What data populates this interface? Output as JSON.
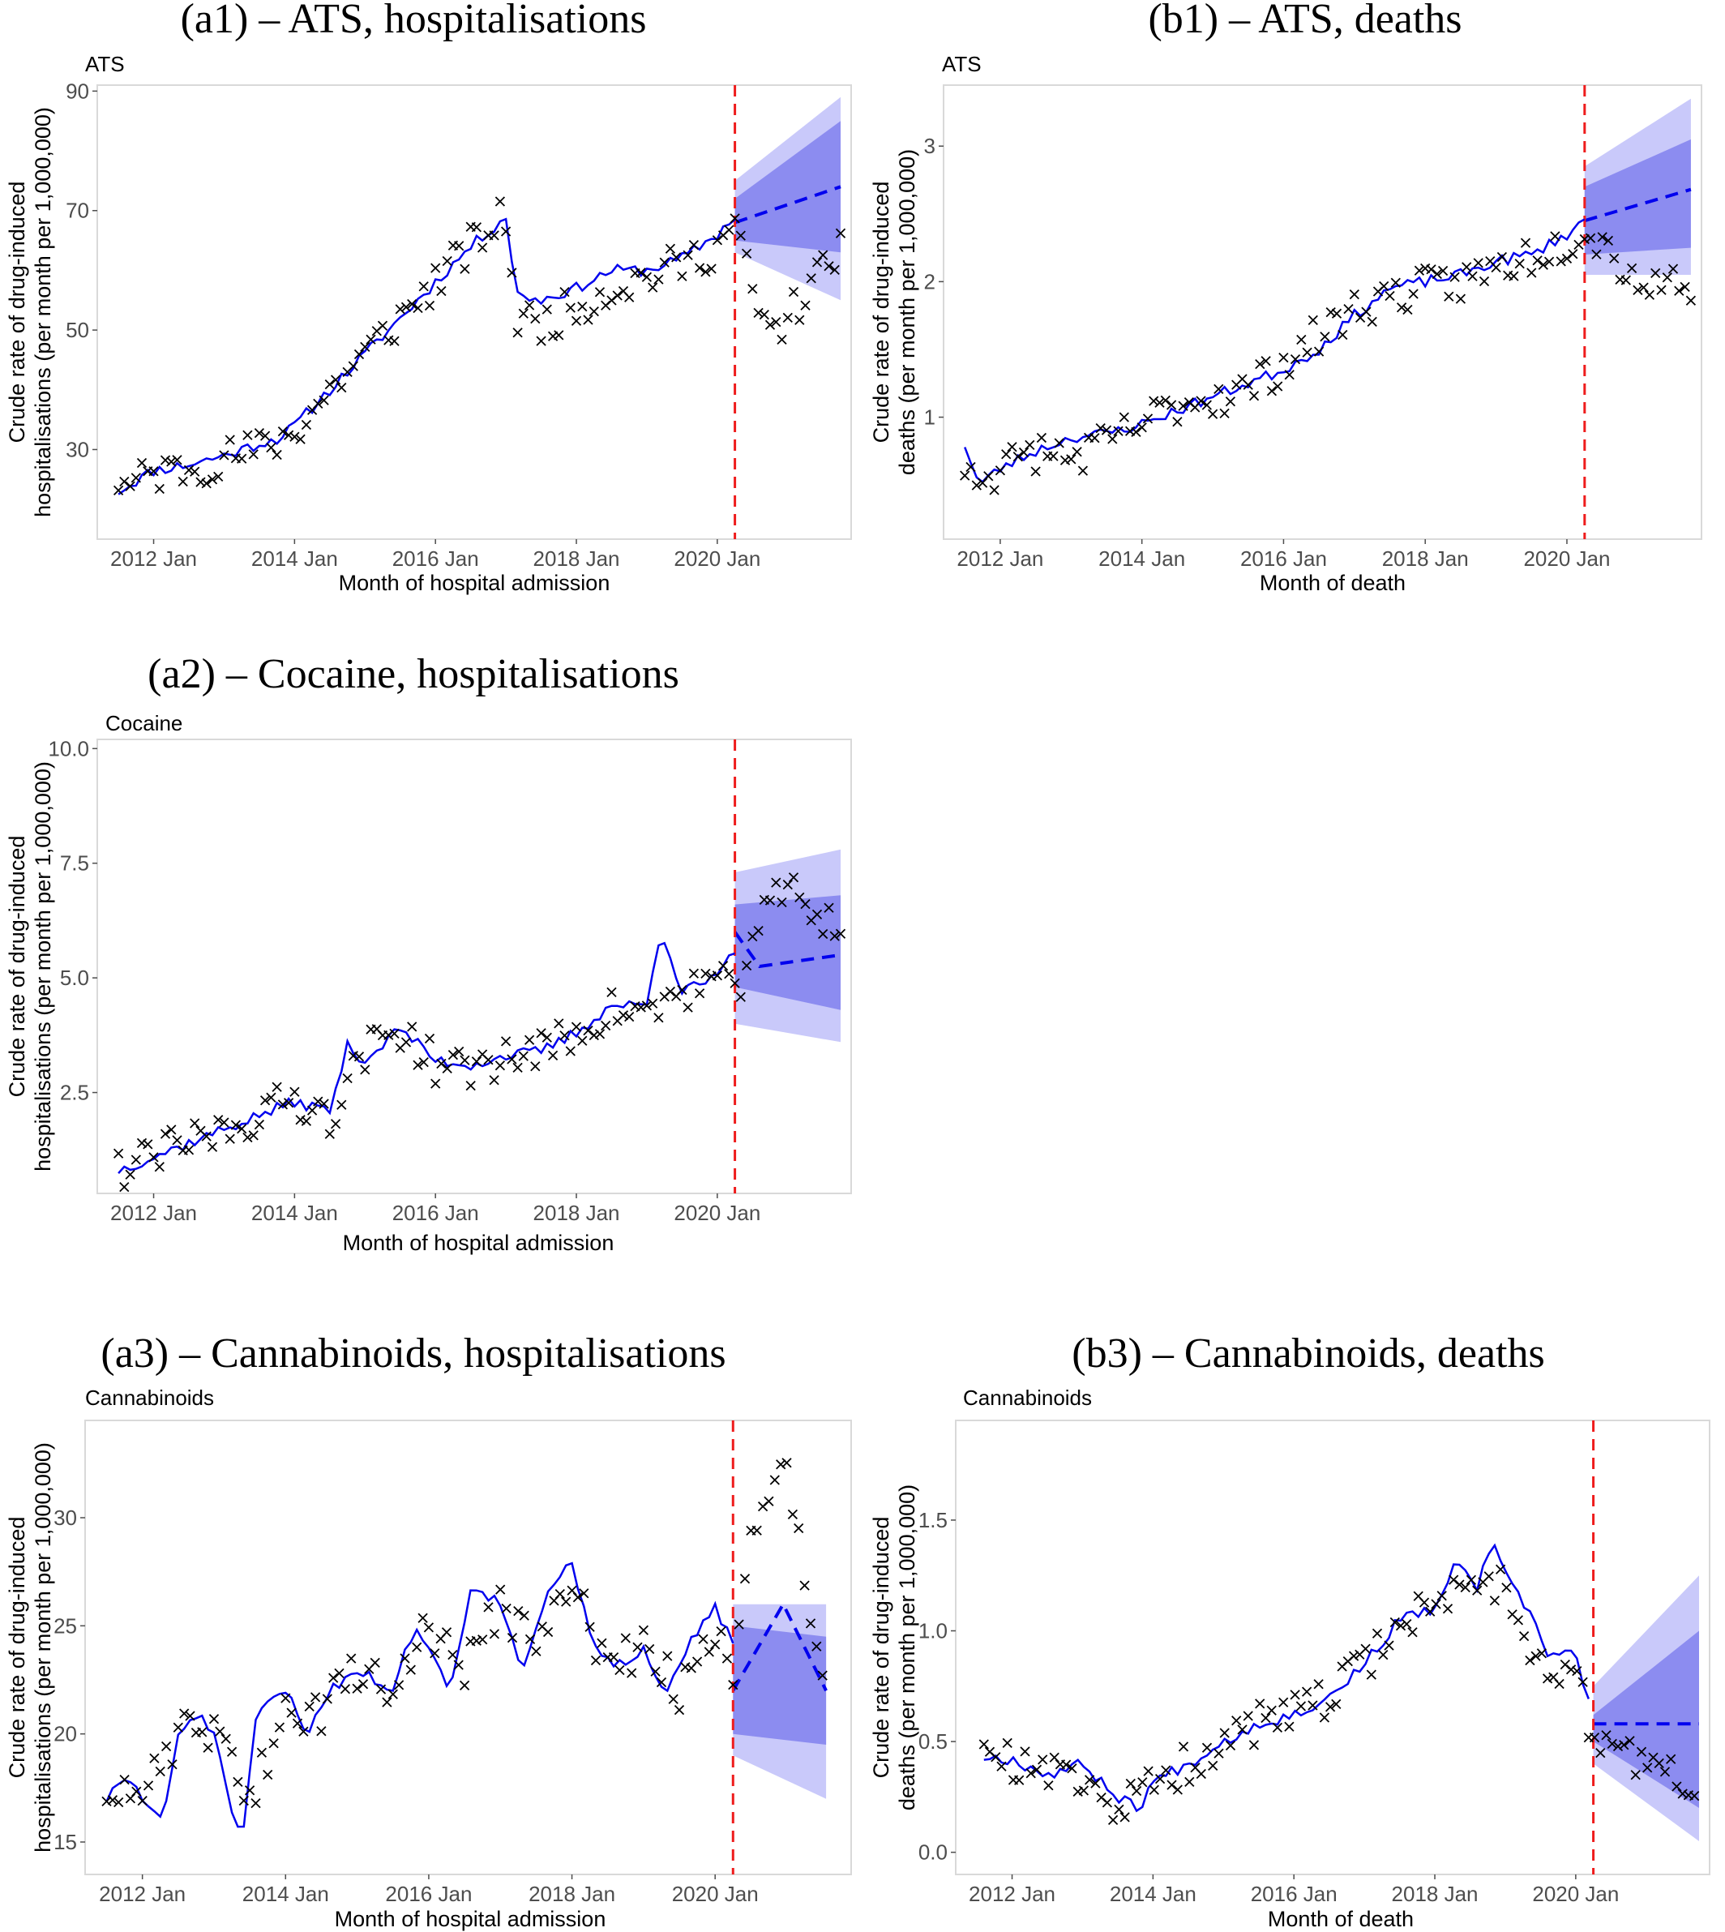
{
  "chart_data": [
    {
      "type": "line",
      "panel_title": "(a1) – ATS, hospitalisations",
      "subtitle": "ATS",
      "xlabel": "Month of hospital admission",
      "ylabel": [
        "Crude rate of drug-induced",
        "hospitalisations (per month per 1,000,000)"
      ],
      "xlim": [
        2011.2,
        2021.9
      ],
      "ylim": [
        15,
        91
      ],
      "xticks": [
        2012,
        2014,
        2016,
        2018,
        2020
      ],
      "xtick_labels": [
        "2012 Jan",
        "2014 Jan",
        "2016 Jan",
        "2018 Jan",
        "2020 Jan"
      ],
      "yticks": [
        30,
        50,
        70,
        90
      ],
      "intervention": 2020.25,
      "fit_knots": [
        [
          2011.5,
          23
        ],
        [
          2012,
          26.5
        ],
        [
          2012.5,
          27.5
        ],
        [
          2013,
          29
        ],
        [
          2013.5,
          31
        ],
        [
          2013.8,
          32
        ],
        [
          2014,
          34
        ],
        [
          2014.5,
          40
        ],
        [
          2015,
          46
        ],
        [
          2015.5,
          52
        ],
        [
          2016,
          58
        ],
        [
          2016.5,
          64
        ],
        [
          2017,
          69
        ],
        [
          2017.15,
          56
        ],
        [
          2017.5,
          55
        ],
        [
          2018,
          57
        ],
        [
          2018.5,
          60
        ],
        [
          2019,
          60
        ],
        [
          2019.5,
          62
        ],
        [
          2020,
          66
        ],
        [
          2020.25,
          69
        ]
      ],
      "forecast": {
        "start": 2020.25,
        "end": 2021.75,
        "y_start": 68,
        "y_end": 74,
        "inner_lo": [
          65,
          63
        ],
        "inner_hi": [
          72,
          85
        ],
        "outer_lo": [
          63,
          55
        ],
        "outer_hi": [
          75,
          89
        ]
      },
      "observed_knots": [
        [
          2011.5,
          23
        ],
        [
          2012,
          26
        ],
        [
          2012.5,
          27
        ],
        [
          2013,
          28.5
        ],
        [
          2013.5,
          30
        ],
        [
          2014,
          33
        ],
        [
          2014.5,
          40
        ],
        [
          2015,
          46
        ],
        [
          2015.5,
          52
        ],
        [
          2016,
          58
        ],
        [
          2016.5,
          64
        ],
        [
          2017,
          69
        ],
        [
          2017.15,
          52
        ],
        [
          2017.5,
          51
        ],
        [
          2018,
          54
        ],
        [
          2018.5,
          57
        ],
        [
          2019,
          59
        ],
        [
          2019.5,
          61
        ],
        [
          2020,
          64
        ],
        [
          2020.25,
          68
        ],
        [
          2020.5,
          56
        ],
        [
          2020.75,
          49
        ],
        [
          2021,
          52
        ],
        [
          2021.5,
          60
        ],
        [
          2021.75,
          65
        ]
      ],
      "seed": 11
    },
    {
      "type": "line",
      "panel_title": "(b1) – ATS, deaths",
      "subtitle": "ATS",
      "xlabel": "Month of death",
      "ylabel": [
        "Crude rate of drug-induced",
        "deaths (per month per 1,000,000)"
      ],
      "xlim": [
        2011.2,
        2021.9
      ],
      "ylim": [
        0.1,
        3.45
      ],
      "xticks": [
        2012,
        2014,
        2016,
        2018,
        2020
      ],
      "xtick_labels": [
        "2012 Jan",
        "2014 Jan",
        "2016 Jan",
        "2018 Jan",
        "2020 Jan"
      ],
      "yticks": [
        1,
        2,
        3
      ],
      "intervention": 2020.25,
      "fit_knots": [
        [
          2011.5,
          0.8
        ],
        [
          2011.7,
          0.5
        ],
        [
          2012,
          0.62
        ],
        [
          2012.5,
          0.75
        ],
        [
          2013,
          0.85
        ],
        [
          2013.5,
          0.88
        ],
        [
          2014,
          0.95
        ],
        [
          2014.5,
          1.05
        ],
        [
          2015,
          1.15
        ],
        [
          2015.5,
          1.25
        ],
        [
          2016,
          1.35
        ],
        [
          2016.5,
          1.5
        ],
        [
          2017,
          1.75
        ],
        [
          2017.5,
          1.95
        ],
        [
          2018,
          2.0
        ],
        [
          2018.5,
          2.05
        ],
        [
          2019,
          2.15
        ],
        [
          2019.5,
          2.2
        ],
        [
          2020,
          2.35
        ],
        [
          2020.25,
          2.45
        ]
      ],
      "forecast": {
        "start": 2020.25,
        "end": 2021.75,
        "y_start": 2.45,
        "y_end": 2.68,
        "inner_lo": [
          2.2,
          2.25
        ],
        "inner_hi": [
          2.7,
          3.05
        ],
        "outer_lo": [
          2.05,
          2.05
        ],
        "outer_hi": [
          2.85,
          3.35
        ]
      },
      "observed_knots": [
        [
          2011.5,
          0.6
        ],
        [
          2012,
          0.6
        ],
        [
          2012.5,
          0.75
        ],
        [
          2013,
          0.7
        ],
        [
          2013.5,
          0.8
        ],
        [
          2014,
          0.95
        ],
        [
          2014.5,
          1.1
        ],
        [
          2015,
          1.15
        ],
        [
          2015.5,
          1.2
        ],
        [
          2016,
          1.4
        ],
        [
          2016.5,
          1.6
        ],
        [
          2017,
          1.8
        ],
        [
          2017.5,
          1.9
        ],
        [
          2018,
          1.95
        ],
        [
          2018.5,
          2.0
        ],
        [
          2019,
          2.1
        ],
        [
          2019.5,
          2.2
        ],
        [
          2020,
          2.3
        ],
        [
          2020.25,
          2.4
        ],
        [
          2020.5,
          2.3
        ],
        [
          2021,
          2.0
        ],
        [
          2021.75,
          2.0
        ]
      ],
      "seed": 23
    },
    {
      "type": "line",
      "panel_title": "(a2) – Cocaine, hospitalisations",
      "subtitle": "Cocaine",
      "xlabel": "Month of hospital admission",
      "ylabel": [
        "Crude rate of drug-induced",
        "hospitalisations (per month per 1,000,000)"
      ],
      "xlim": [
        2011.2,
        2021.9
      ],
      "ylim": [
        0.3,
        10.2
      ],
      "xticks": [
        2012,
        2014,
        2016,
        2018,
        2020
      ],
      "xtick_labels": [
        "2012 Jan",
        "2014 Jan",
        "2016 Jan",
        "2018 Jan",
        "2020 Jan"
      ],
      "yticks": [
        2.5,
        5.0,
        7.5,
        10.0
      ],
      "ytick_labels": [
        "2.5",
        "5.0",
        "7.5",
        "10.0"
      ],
      "intervention": 2020.25,
      "fit_knots": [
        [
          2011.5,
          0.8
        ],
        [
          2012,
          1.1
        ],
        [
          2012.5,
          1.4
        ],
        [
          2013,
          1.7
        ],
        [
          2013.5,
          2.0
        ],
        [
          2014,
          2.3
        ],
        [
          2014.5,
          2.1
        ],
        [
          2014.75,
          3.5
        ],
        [
          2015,
          3.2
        ],
        [
          2015.5,
          3.9
        ],
        [
          2016,
          3.2
        ],
        [
          2016.5,
          3.1
        ],
        [
          2017,
          3.3
        ],
        [
          2017.5,
          3.4
        ],
        [
          2018,
          3.8
        ],
        [
          2018.5,
          4.4
        ],
        [
          2019,
          4.4
        ],
        [
          2019.2,
          6.1
        ],
        [
          2019.5,
          4.7
        ],
        [
          2020,
          5.0
        ],
        [
          2020.25,
          5.6
        ]
      ],
      "forecast": {
        "start": 2020.25,
        "end": 2021.75,
        "y_start": 6.0,
        "y_end": 5.5,
        "mid": [
          2020.6,
          5.25
        ],
        "inner_lo": [
          4.8,
          4.3
        ],
        "inner_hi": [
          6.6,
          6.8
        ],
        "outer_lo": [
          4.0,
          3.6
        ],
        "outer_hi": [
          7.3,
          7.8
        ]
      },
      "observed_knots": [
        [
          2011.5,
          0.8
        ],
        [
          2012,
          1.1
        ],
        [
          2012.5,
          1.4
        ],
        [
          2013,
          1.7
        ],
        [
          2013.5,
          2.0
        ],
        [
          2014,
          2.4
        ],
        [
          2014.5,
          2.0
        ],
        [
          2015,
          3.4
        ],
        [
          2015.5,
          3.9
        ],
        [
          2016,
          3.1
        ],
        [
          2016.5,
          3.0
        ],
        [
          2017,
          3.3
        ],
        [
          2017.5,
          3.4
        ],
        [
          2018,
          3.8
        ],
        [
          2018.5,
          4.3
        ],
        [
          2019,
          4.2
        ],
        [
          2019.5,
          4.7
        ],
        [
          2020,
          5.0
        ],
        [
          2020.25,
          4.5
        ],
        [
          2020.5,
          6.0
        ],
        [
          2021,
          7.0
        ],
        [
          2021.75,
          6.0
        ]
      ],
      "seed": 37
    },
    {
      "type": "line",
      "panel_title": "(a3) – Cannabinoids, hospitalisations",
      "subtitle": "Cannabinoids",
      "xlabel": "Month of hospital admission",
      "ylabel": [
        "Crude rate of drug-induced",
        "hospitalisations (per month per 1,000,000)"
      ],
      "xlim": [
        2011.2,
        2021.9
      ],
      "ylim": [
        13.5,
        34.5
      ],
      "xticks": [
        2012,
        2014,
        2016,
        2018,
        2020
      ],
      "xtick_labels": [
        "2012 Jan",
        "2014 Jan",
        "2016 Jan",
        "2018 Jan",
        "2020 Jan"
      ],
      "yticks": [
        15,
        20,
        25,
        30
      ],
      "intervention": 2020.25,
      "fit_knots": [
        [
          2011.5,
          17
        ],
        [
          2011.8,
          18
        ],
        [
          2012,
          17
        ],
        [
          2012.3,
          16
        ],
        [
          2012.5,
          20
        ],
        [
          2012.8,
          21
        ],
        [
          2013,
          20
        ],
        [
          2013.2,
          17
        ],
        [
          2013.4,
          15
        ],
        [
          2013.6,
          21
        ],
        [
          2014,
          22
        ],
        [
          2014.3,
          20
        ],
        [
          2014.6,
          22
        ],
        [
          2015,
          23
        ],
        [
          2015.5,
          22
        ],
        [
          2015.8,
          25
        ],
        [
          2016,
          24
        ],
        [
          2016.3,
          22
        ],
        [
          2016.6,
          27
        ],
        [
          2017,
          26
        ],
        [
          2017.3,
          23
        ],
        [
          2017.6,
          26
        ],
        [
          2018,
          28
        ],
        [
          2018.3,
          24
        ],
        [
          2018.6,
          23
        ],
        [
          2019,
          24
        ],
        [
          2019.3,
          22
        ],
        [
          2019.6,
          24
        ],
        [
          2020,
          26
        ],
        [
          2020.25,
          24
        ]
      ],
      "forecast": {
        "start": 2020.25,
        "end": 2021.55,
        "y_start": 22,
        "y_end": 22,
        "mid": [
          2020.95,
          26
        ],
        "inner_lo": [
          20,
          19.5
        ],
        "inner_hi": [
          25,
          24.5
        ],
        "outer_lo": [
          19,
          17
        ],
        "outer_hi": [
          26,
          26
        ]
      },
      "observed_knots": [
        [
          2011.5,
          17
        ],
        [
          2012,
          17
        ],
        [
          2012.5,
          20
        ],
        [
          2013,
          20
        ],
        [
          2013.5,
          17
        ],
        [
          2014,
          21
        ],
        [
          2014.5,
          21
        ],
        [
          2015,
          23
        ],
        [
          2015.5,
          22
        ],
        [
          2016,
          25
        ],
        [
          2016.5,
          23
        ],
        [
          2017,
          26
        ],
        [
          2017.5,
          24
        ],
        [
          2018,
          27
        ],
        [
          2018.5,
          23
        ],
        [
          2019,
          24
        ],
        [
          2019.5,
          22
        ],
        [
          2020,
          25
        ],
        [
          2020.25,
          22
        ],
        [
          2020.5,
          30
        ],
        [
          2021,
          32
        ],
        [
          2021.5,
          23
        ]
      ],
      "seed": 51
    },
    {
      "type": "line",
      "panel_title": "(b3) – Cannabinoids, deaths",
      "subtitle": "Cannabinoids",
      "xlabel": "Month of death",
      "ylabel": [
        "Crude rate of drug-induced",
        "deaths (per month per 1,000,000)"
      ],
      "xlim": [
        2011.2,
        2021.9
      ],
      "ylim": [
        -0.1,
        1.95
      ],
      "xticks": [
        2012,
        2014,
        2016,
        2018,
        2020
      ],
      "xtick_labels": [
        "2012 Jan",
        "2014 Jan",
        "2016 Jan",
        "2018 Jan",
        "2020 Jan"
      ],
      "yticks": [
        0.0,
        0.5,
        1.0,
        1.5
      ],
      "ytick_labels": [
        "0.0",
        "0.5",
        "1.0",
        "1.5"
      ],
      "intervention": 2020.25,
      "fit_knots": [
        [
          2011.6,
          0.43
        ],
        [
          2012,
          0.42
        ],
        [
          2012.5,
          0.35
        ],
        [
          2013,
          0.4
        ],
        [
          2013.5,
          0.25
        ],
        [
          2013.8,
          0.2
        ],
        [
          2014,
          0.32
        ],
        [
          2014.5,
          0.4
        ],
        [
          2015,
          0.5
        ],
        [
          2015.5,
          0.58
        ],
        [
          2016,
          0.62
        ],
        [
          2016.5,
          0.7
        ],
        [
          2017,
          0.85
        ],
        [
          2017.5,
          1.05
        ],
        [
          2018,
          1.1
        ],
        [
          2018.3,
          1.3
        ],
        [
          2018.6,
          1.2
        ],
        [
          2018.8,
          1.4
        ],
        [
          2019,
          1.25
        ],
        [
          2019.3,
          1.1
        ],
        [
          2019.6,
          0.9
        ],
        [
          2020,
          0.9
        ],
        [
          2020.25,
          0.6
        ]
      ],
      "forecast": {
        "start": 2020.25,
        "end": 2021.75,
        "y_start": 0.58,
        "y_end": 0.58,
        "inner_lo": [
          0.5,
          0.2
        ],
        "inner_hi": [
          0.62,
          1.0
        ],
        "outer_lo": [
          0.4,
          0.05
        ],
        "outer_hi": [
          0.75,
          1.25
        ]
      },
      "observed_knots": [
        [
          2011.6,
          0.42
        ],
        [
          2012,
          0.4
        ],
        [
          2012.5,
          0.35
        ],
        [
          2013,
          0.35
        ],
        [
          2013.5,
          0.2
        ],
        [
          2014,
          0.3
        ],
        [
          2014.5,
          0.4
        ],
        [
          2015,
          0.5
        ],
        [
          2015.5,
          0.58
        ],
        [
          2016,
          0.62
        ],
        [
          2016.5,
          0.7
        ],
        [
          2017,
          0.85
        ],
        [
          2017.5,
          1.05
        ],
        [
          2018,
          1.1
        ],
        [
          2018.5,
          1.25
        ],
        [
          2019,
          1.2
        ],
        [
          2019.5,
          0.85
        ],
        [
          2020,
          0.8
        ],
        [
          2020.25,
          0.5
        ],
        [
          2020.5,
          0.5
        ],
        [
          2021,
          0.4
        ],
        [
          2021.75,
          0.3
        ]
      ],
      "seed": 67
    }
  ],
  "colors": {
    "fit": "#0000ee",
    "forecast_inner": "#8c8cf0",
    "forecast_outer": "#c9c9fa",
    "intervention": "#ee1c1c",
    "observed": "#000000"
  }
}
